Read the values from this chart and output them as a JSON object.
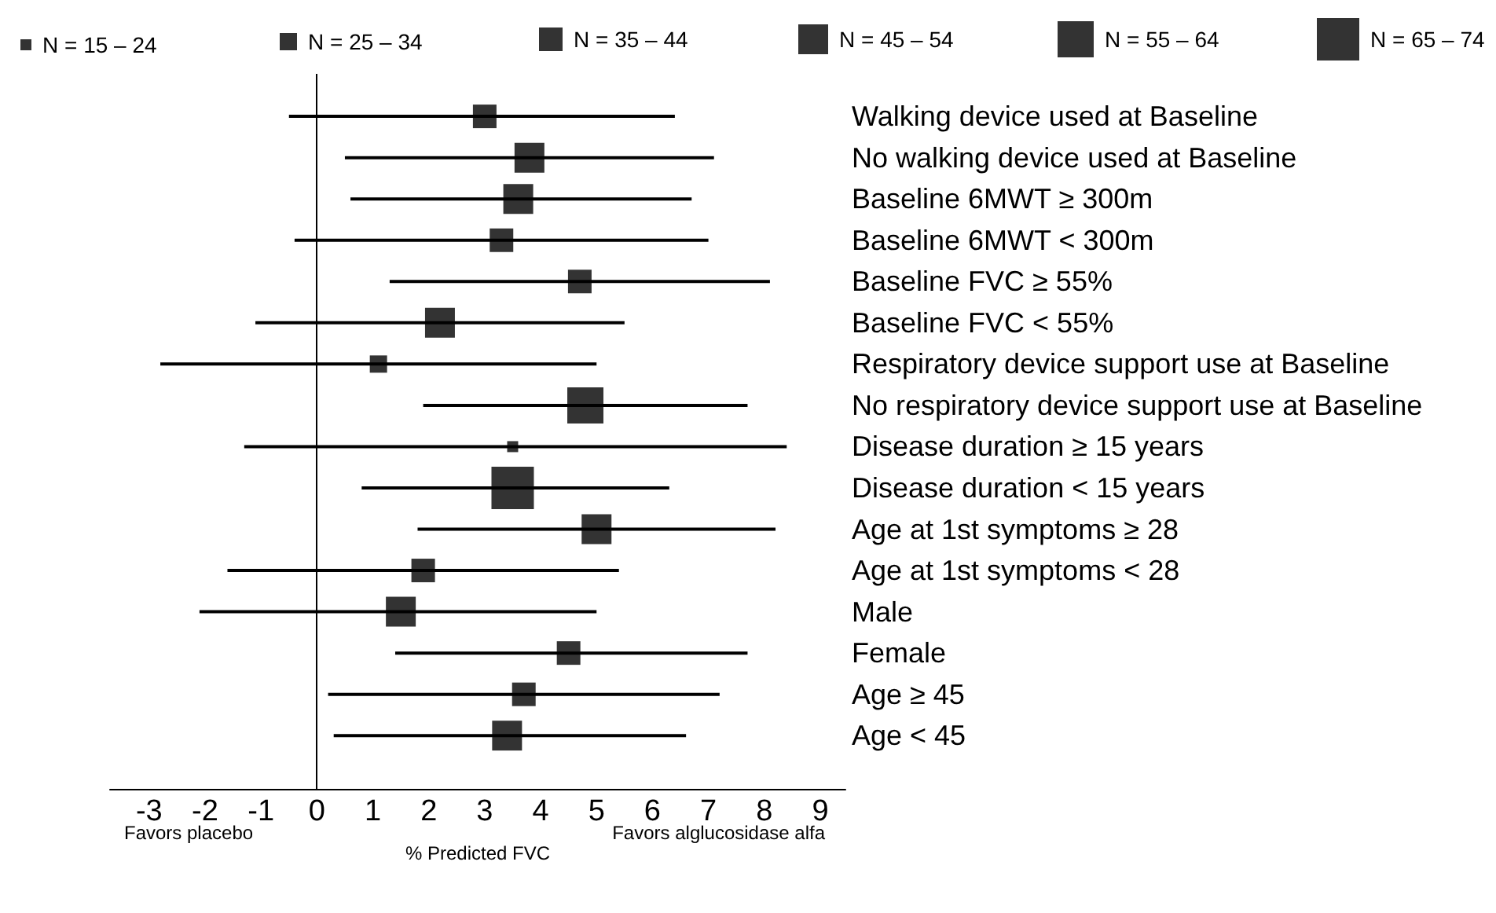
{
  "chart_data": {
    "type": "scatter",
    "orientation": "horizontal",
    "xlabel": "% Predicted FVC",
    "annotations": [
      "Favors placebo",
      "Favors alglucosidase alfa"
    ],
    "categories": [
      "Walking device used at Baseline",
      "No walking device used at Baseline",
      "Baseline 6MWT ≥ 300m",
      "Baseline 6MWT < 300m",
      "Baseline FVC ≥ 55%",
      "Baseline FVC < 55%",
      "Respiratory device support use at Baseline",
      "No respiratory device support use at Baseline",
      "Disease duration ≥ 15 years",
      "Disease duration < 15 years",
      "Age at 1st symptoms ≥ 28",
      "Age at 1st symptoms < 28",
      "Male",
      "Female",
      "Age ≥ 45",
      "Age < 45"
    ],
    "series": [
      {
        "name": "N = 15 – 24",
        "color": "#000000",
        "values": [
          null,
          null,
          null,
          null,
          null,
          null,
          null,
          null,
          3.5,
          null,
          null,
          null,
          null,
          null,
          null,
          null
        ],
        "errors": [
          null,
          null,
          null,
          null,
          null,
          null,
          null,
          null,
          [
            -1.3,
            8.4
          ],
          null,
          null,
          null,
          null,
          null,
          null,
          null
        ]
      },
      {
        "name": "N = 25 – 34",
        "color": "#000000",
        "values": [
          null,
          null,
          null,
          null,
          null,
          null,
          1.1,
          null,
          null,
          null,
          null,
          null,
          null,
          null,
          null,
          null
        ],
        "errors": [
          null,
          null,
          null,
          null,
          null,
          null,
          [
            -2.8,
            5.0
          ],
          null,
          null,
          null,
          null,
          null,
          null,
          null,
          null,
          null
        ]
      },
      {
        "name": "N = 35 – 44",
        "color": "#000000",
        "values": [
          3.0,
          null,
          null,
          3.3,
          4.7,
          null,
          null,
          null,
          null,
          null,
          null,
          1.9,
          null,
          4.5,
          3.7,
          null
        ],
        "errors": [
          [
            -0.5,
            6.4
          ],
          null,
          null,
          [
            -0.4,
            7.0
          ],
          [
            1.3,
            8.1
          ],
          null,
          null,
          null,
          null,
          null,
          null,
          [
            -1.6,
            5.4
          ],
          null,
          [
            1.4,
            7.7
          ],
          [
            0.2,
            7.2
          ],
          null
        ]
      },
      {
        "name": "N = 45 – 54",
        "color": "#000000",
        "values": [
          null,
          3.8,
          3.6,
          null,
          null,
          2.2,
          null,
          null,
          null,
          null,
          5.0,
          null,
          1.5,
          null,
          null,
          3.4
        ],
        "errors": [
          null,
          [
            0.5,
            7.1
          ],
          [
            0.6,
            6.7
          ],
          null,
          null,
          [
            -1.1,
            5.5
          ],
          null,
          null,
          null,
          null,
          [
            1.8,
            8.2
          ],
          null,
          [
            -2.1,
            5.0
          ],
          null,
          null,
          [
            0.3,
            6.6
          ]
        ]
      },
      {
        "name": "N = 55 – 64",
        "color": "#000000",
        "values": [
          null,
          null,
          null,
          null,
          null,
          null,
          null,
          4.8,
          null,
          null,
          null,
          null,
          null,
          null,
          null,
          null
        ],
        "errors": [
          null,
          null,
          null,
          null,
          null,
          null,
          null,
          [
            1.9,
            7.7
          ],
          null,
          null,
          null,
          null,
          null,
          null,
          null,
          null
        ]
      },
      {
        "name": "N = 65 – 74",
        "color": "#000000",
        "values": [
          null,
          null,
          null,
          null,
          null,
          null,
          null,
          null,
          null,
          3.5,
          null,
          null,
          null,
          null,
          null,
          null
        ],
        "errors": [
          null,
          null,
          null,
          null,
          null,
          null,
          null,
          null,
          null,
          [
            0.8,
            6.3
          ],
          null,
          null,
          null,
          null,
          null,
          null
        ]
      }
    ],
    "xlim": [
      -3.7,
      9.45
    ],
    "xticks": [
      -3,
      -2,
      -1,
      0,
      1,
      2,
      3,
      4,
      5,
      6,
      7,
      8,
      9
    ],
    "ref_lines": [
      {
        "axis": "x",
        "value": 0,
        "color": "#000000"
      }
    ],
    "marker": "square",
    "legend": "top",
    "grid": false
  }
}
